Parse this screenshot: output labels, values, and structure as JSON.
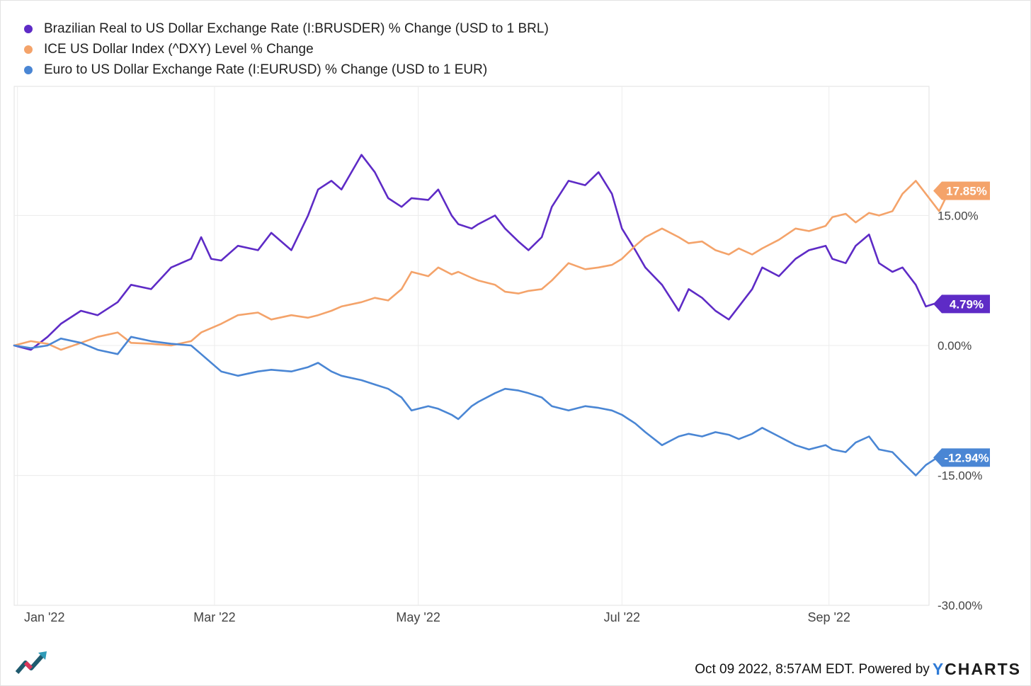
{
  "chart_data": {
    "type": "line",
    "title": "",
    "x_ticks": [
      "Jan '22",
      "Mar '22",
      "May '22",
      "Jul '22",
      "Sep '22"
    ],
    "y_ticks": [
      "15.00%",
      "0.00%",
      "-15.00%",
      "-30.00%"
    ],
    "ylim": [
      -30,
      30
    ],
    "grid": true,
    "legend_placement": "top-left",
    "series": [
      {
        "name": "Brazilian Real to US Dollar Exchange Rate (I:BRUSDER) % Change (USD to 1 BRL)",
        "color": "#5e2bc6",
        "end_label": "4.79%",
        "points": [
          [
            "2021-12-31",
            0
          ],
          [
            "2022-01-05",
            -0.5
          ],
          [
            "2022-01-10",
            1
          ],
          [
            "2022-01-14",
            2.5
          ],
          [
            "2022-01-20",
            4
          ],
          [
            "2022-01-25",
            3.5
          ],
          [
            "2022-01-31",
            5
          ],
          [
            "2022-02-04",
            7
          ],
          [
            "2022-02-10",
            6.5
          ],
          [
            "2022-02-16",
            9
          ],
          [
            "2022-02-22",
            10
          ],
          [
            "2022-02-25",
            12.5
          ],
          [
            "2022-02-28",
            10
          ],
          [
            "2022-03-03",
            9.8
          ],
          [
            "2022-03-08",
            11.5
          ],
          [
            "2022-03-14",
            11
          ],
          [
            "2022-03-18",
            13
          ],
          [
            "2022-03-24",
            11
          ],
          [
            "2022-03-29",
            15
          ],
          [
            "2022-04-01",
            18
          ],
          [
            "2022-04-05",
            19
          ],
          [
            "2022-04-08",
            18
          ],
          [
            "2022-04-14",
            22
          ],
          [
            "2022-04-18",
            20
          ],
          [
            "2022-04-22",
            17
          ],
          [
            "2022-04-26",
            16
          ],
          [
            "2022-04-29",
            17
          ],
          [
            "2022-05-04",
            16.8
          ],
          [
            "2022-05-07",
            18
          ],
          [
            "2022-05-11",
            15
          ],
          [
            "2022-05-13",
            14
          ],
          [
            "2022-05-17",
            13.5
          ],
          [
            "2022-05-19",
            14
          ],
          [
            "2022-05-24",
            15
          ],
          [
            "2022-05-27",
            13.5
          ],
          [
            "2022-05-31",
            12
          ],
          [
            "2022-06-03",
            11
          ],
          [
            "2022-06-07",
            12.5
          ],
          [
            "2022-06-10",
            16
          ],
          [
            "2022-06-15",
            19
          ],
          [
            "2022-06-20",
            18.5
          ],
          [
            "2022-06-24",
            20
          ],
          [
            "2022-06-28",
            17.5
          ],
          [
            "2022-07-01",
            13.5
          ],
          [
            "2022-07-05",
            11
          ],
          [
            "2022-07-08",
            9
          ],
          [
            "2022-07-13",
            7
          ],
          [
            "2022-07-18",
            4
          ],
          [
            "2022-07-21",
            6.5
          ],
          [
            "2022-07-25",
            5.5
          ],
          [
            "2022-07-29",
            4
          ],
          [
            "2022-08-02",
            3
          ],
          [
            "2022-08-05",
            4.5
          ],
          [
            "2022-08-09",
            6.5
          ],
          [
            "2022-08-12",
            9
          ],
          [
            "2022-08-17",
            8
          ],
          [
            "2022-08-22",
            10
          ],
          [
            "2022-08-26",
            11
          ],
          [
            "2022-08-31",
            11.5
          ],
          [
            "2022-09-02",
            10
          ],
          [
            "2022-09-06",
            9.5
          ],
          [
            "2022-09-09",
            11.5
          ],
          [
            "2022-09-13",
            12.8
          ],
          [
            "2022-09-16",
            9.5
          ],
          [
            "2022-09-20",
            8.5
          ],
          [
            "2022-09-23",
            9
          ],
          [
            "2022-09-27",
            7
          ],
          [
            "2022-09-30",
            4.5
          ],
          [
            "2022-10-04",
            5
          ],
          [
            "2022-10-07",
            4.79
          ]
        ]
      },
      {
        "name": "ICE US Dollar Index (^DXY) Level % Change",
        "color": "#f4a36a",
        "end_label": "17.85%",
        "points": [
          [
            "2021-12-31",
            0
          ],
          [
            "2022-01-05",
            0.5
          ],
          [
            "2022-01-10",
            0.2
          ],
          [
            "2022-01-14",
            -0.5
          ],
          [
            "2022-01-20",
            0.3
          ],
          [
            "2022-01-25",
            1
          ],
          [
            "2022-01-31",
            1.5
          ],
          [
            "2022-02-04",
            0.3
          ],
          [
            "2022-02-10",
            0.2
          ],
          [
            "2022-02-16",
            0
          ],
          [
            "2022-02-22",
            0.5
          ],
          [
            "2022-02-25",
            1.5
          ],
          [
            "2022-03-03",
            2.5
          ],
          [
            "2022-03-08",
            3.5
          ],
          [
            "2022-03-14",
            3.8
          ],
          [
            "2022-03-18",
            3
          ],
          [
            "2022-03-24",
            3.5
          ],
          [
            "2022-03-29",
            3.2
          ],
          [
            "2022-04-01",
            3.5
          ],
          [
            "2022-04-05",
            4
          ],
          [
            "2022-04-08",
            4.5
          ],
          [
            "2022-04-14",
            5
          ],
          [
            "2022-04-18",
            5.5
          ],
          [
            "2022-04-22",
            5.2
          ],
          [
            "2022-04-26",
            6.5
          ],
          [
            "2022-04-29",
            8.5
          ],
          [
            "2022-05-04",
            8
          ],
          [
            "2022-05-07",
            9
          ],
          [
            "2022-05-11",
            8.2
          ],
          [
            "2022-05-13",
            8.5
          ],
          [
            "2022-05-17",
            7.8
          ],
          [
            "2022-05-19",
            7.5
          ],
          [
            "2022-05-24",
            7
          ],
          [
            "2022-05-27",
            6.2
          ],
          [
            "2022-05-31",
            6
          ],
          [
            "2022-06-03",
            6.3
          ],
          [
            "2022-06-07",
            6.5
          ],
          [
            "2022-06-10",
            7.5
          ],
          [
            "2022-06-15",
            9.5
          ],
          [
            "2022-06-20",
            8.8
          ],
          [
            "2022-06-24",
            9
          ],
          [
            "2022-06-28",
            9.3
          ],
          [
            "2022-07-01",
            10
          ],
          [
            "2022-07-05",
            11.5
          ],
          [
            "2022-07-08",
            12.5
          ],
          [
            "2022-07-13",
            13.5
          ],
          [
            "2022-07-18",
            12.5
          ],
          [
            "2022-07-21",
            11.8
          ],
          [
            "2022-07-25",
            12
          ],
          [
            "2022-07-29",
            11
          ],
          [
            "2022-08-02",
            10.5
          ],
          [
            "2022-08-05",
            11.2
          ],
          [
            "2022-08-09",
            10.5
          ],
          [
            "2022-08-12",
            11.2
          ],
          [
            "2022-08-17",
            12.2
          ],
          [
            "2022-08-22",
            13.5
          ],
          [
            "2022-08-26",
            13.2
          ],
          [
            "2022-08-31",
            13.8
          ],
          [
            "2022-09-02",
            14.8
          ],
          [
            "2022-09-06",
            15.2
          ],
          [
            "2022-09-09",
            14.2
          ],
          [
            "2022-09-13",
            15.3
          ],
          [
            "2022-09-16",
            15
          ],
          [
            "2022-09-20",
            15.5
          ],
          [
            "2022-09-23",
            17.5
          ],
          [
            "2022-09-27",
            19
          ],
          [
            "2022-09-30",
            17.5
          ],
          [
            "2022-10-04",
            15.5
          ],
          [
            "2022-10-07",
            17.85
          ]
        ]
      },
      {
        "name": "Euro to US Dollar Exchange Rate (I:EURUSD) % Change (USD to 1 EUR)",
        "color": "#4a86d4",
        "end_label": "-12.94%",
        "points": [
          [
            "2021-12-31",
            0
          ],
          [
            "2022-01-05",
            -0.3
          ],
          [
            "2022-01-10",
            0
          ],
          [
            "2022-01-14",
            0.8
          ],
          [
            "2022-01-20",
            0.3
          ],
          [
            "2022-01-25",
            -0.5
          ],
          [
            "2022-01-31",
            -1
          ],
          [
            "2022-02-04",
            1
          ],
          [
            "2022-02-10",
            0.5
          ],
          [
            "2022-02-16",
            0.2
          ],
          [
            "2022-02-22",
            0
          ],
          [
            "2022-02-25",
            -1
          ],
          [
            "2022-03-03",
            -3
          ],
          [
            "2022-03-08",
            -3.5
          ],
          [
            "2022-03-14",
            -3
          ],
          [
            "2022-03-18",
            -2.8
          ],
          [
            "2022-03-24",
            -3
          ],
          [
            "2022-03-29",
            -2.5
          ],
          [
            "2022-04-01",
            -2
          ],
          [
            "2022-04-05",
            -3
          ],
          [
            "2022-04-08",
            -3.5
          ],
          [
            "2022-04-14",
            -4
          ],
          [
            "2022-04-18",
            -4.5
          ],
          [
            "2022-04-22",
            -5
          ],
          [
            "2022-04-26",
            -6
          ],
          [
            "2022-04-29",
            -7.5
          ],
          [
            "2022-05-04",
            -7
          ],
          [
            "2022-05-07",
            -7.3
          ],
          [
            "2022-05-11",
            -8
          ],
          [
            "2022-05-13",
            -8.5
          ],
          [
            "2022-05-17",
            -7
          ],
          [
            "2022-05-19",
            -6.5
          ],
          [
            "2022-05-24",
            -5.5
          ],
          [
            "2022-05-27",
            -5
          ],
          [
            "2022-05-31",
            -5.2
          ],
          [
            "2022-06-03",
            -5.5
          ],
          [
            "2022-06-07",
            -6
          ],
          [
            "2022-06-10",
            -7
          ],
          [
            "2022-06-15",
            -7.5
          ],
          [
            "2022-06-20",
            -7
          ],
          [
            "2022-06-24",
            -7.2
          ],
          [
            "2022-06-28",
            -7.5
          ],
          [
            "2022-07-01",
            -8
          ],
          [
            "2022-07-05",
            -9
          ],
          [
            "2022-07-08",
            -10
          ],
          [
            "2022-07-13",
            -11.5
          ],
          [
            "2022-07-18",
            -10.5
          ],
          [
            "2022-07-21",
            -10.2
          ],
          [
            "2022-07-25",
            -10.5
          ],
          [
            "2022-07-29",
            -10
          ],
          [
            "2022-08-02",
            -10.3
          ],
          [
            "2022-08-05",
            -10.8
          ],
          [
            "2022-08-09",
            -10.2
          ],
          [
            "2022-08-12",
            -9.5
          ],
          [
            "2022-08-17",
            -10.5
          ],
          [
            "2022-08-22",
            -11.5
          ],
          [
            "2022-08-26",
            -12
          ],
          [
            "2022-08-31",
            -11.5
          ],
          [
            "2022-09-02",
            -12
          ],
          [
            "2022-09-06",
            -12.3
          ],
          [
            "2022-09-09",
            -11.2
          ],
          [
            "2022-09-13",
            -10.5
          ],
          [
            "2022-09-16",
            -12
          ],
          [
            "2022-09-20",
            -12.3
          ],
          [
            "2022-09-23",
            -13.5
          ],
          [
            "2022-09-27",
            -15
          ],
          [
            "2022-09-30",
            -13.8
          ],
          [
            "2022-10-04",
            -12.8
          ],
          [
            "2022-10-07",
            -12.94
          ]
        ]
      }
    ]
  },
  "footer": {
    "timestamp": "Oct 09 2022, 8:57AM EDT. Powered by",
    "brand_y": "Y",
    "brand_rest": "CHARTS"
  }
}
